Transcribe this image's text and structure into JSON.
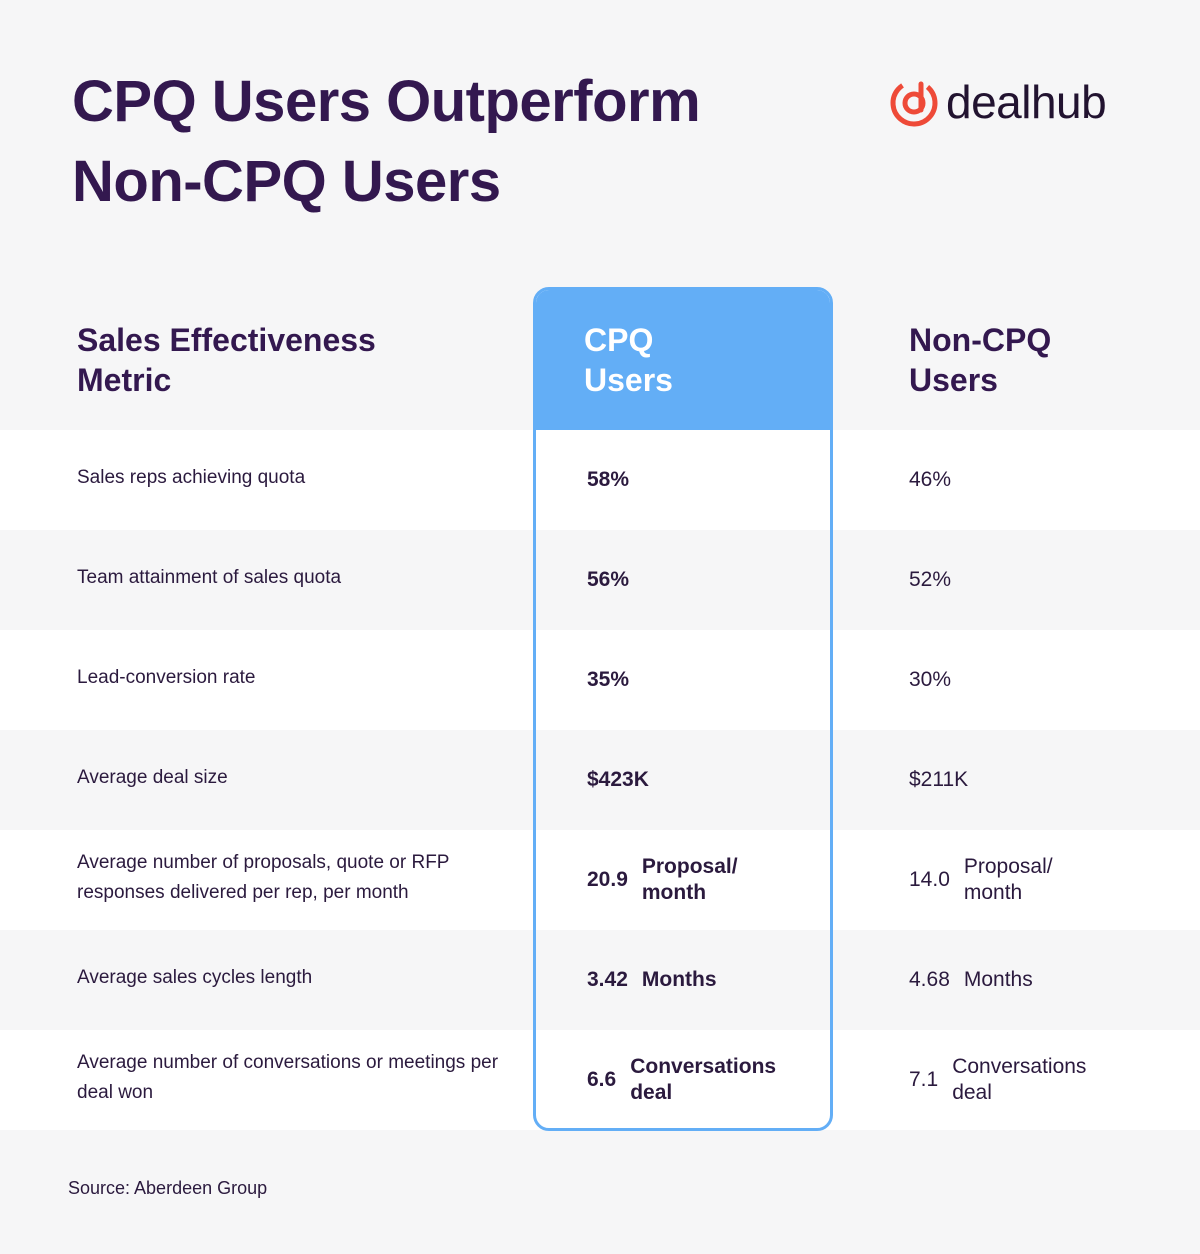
{
  "title": {
    "line1": "CPQ Users Outperform",
    "line2": "Non-CPQ Users"
  },
  "logo": {
    "text": "dealhub",
    "icon": "dealhub-logo-icon",
    "color": "#ee4a38"
  },
  "table": {
    "headers": {
      "metric": {
        "line1": "Sales Effectiveness",
        "line2": "Metric"
      },
      "cpq": {
        "line1": "CPQ",
        "line2": "Users"
      },
      "non_cpq": {
        "line1": "Non-CPQ",
        "line2": "Users"
      }
    },
    "rows": [
      {
        "metric": "Sales reps achieving quota",
        "cpq_value": "58%",
        "cpq_unit": "",
        "non_cpq_value": "46%",
        "non_cpq_unit": ""
      },
      {
        "metric": "Team attainment of sales quota",
        "cpq_value": "56%",
        "cpq_unit": "",
        "non_cpq_value": "52%",
        "non_cpq_unit": ""
      },
      {
        "metric": "Lead-conversion rate",
        "cpq_value": "35%",
        "cpq_unit": "",
        "non_cpq_value": "30%",
        "non_cpq_unit": ""
      },
      {
        "metric": "Average deal size",
        "cpq_value": "$423K",
        "cpq_unit": "",
        "non_cpq_value": "$211K",
        "non_cpq_unit": ""
      },
      {
        "metric": "Average number of proposals, quote or RFP responses delivered per rep, per month",
        "cpq_value": "20.9",
        "cpq_unit": "Proposal/ month",
        "non_cpq_value": "14.0",
        "non_cpq_unit": "Proposal/ month"
      },
      {
        "metric": "Average sales cycles length",
        "cpq_value": "3.42",
        "cpq_unit": "Months",
        "non_cpq_value": "4.68",
        "non_cpq_unit": "Months"
      },
      {
        "metric": "Average number of conversations or meetings per deal won",
        "cpq_value": "6.6",
        "cpq_unit": "Conversations deal",
        "non_cpq_value": "7.1",
        "non_cpq_unit": "Conversations deal"
      }
    ]
  },
  "source": "Source: Aberdeen Group",
  "colors": {
    "accent": "#63aef6",
    "title": "#33184f",
    "background": "#f6f6f7"
  }
}
